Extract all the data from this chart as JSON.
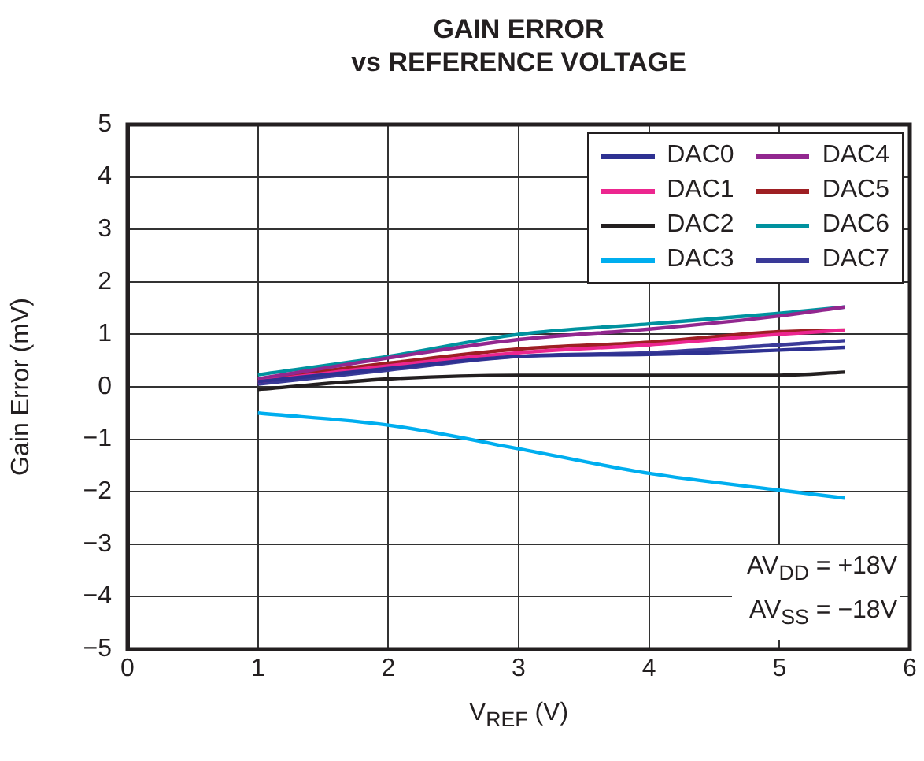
{
  "chart_data": {
    "type": "line",
    "title": "GAIN ERROR\nvs REFERENCE VOLTAGE",
    "xlabel": "V$_{REF}$ (V)",
    "ylabel": "Gain Error (mV)",
    "x": [
      1,
      2,
      3,
      4,
      5,
      5.5
    ],
    "series": [
      {
        "name": "DAC0",
        "color": "#2e3192",
        "values": [
          0.1,
          0.35,
          0.58,
          0.62,
          0.7,
          0.75
        ]
      },
      {
        "name": "DAC1",
        "color": "#ec268f",
        "values": [
          0.1,
          0.4,
          0.65,
          0.8,
          1.0,
          1.08
        ]
      },
      {
        "name": "DAC2",
        "color": "#231f20",
        "values": [
          -0.05,
          0.15,
          0.22,
          0.22,
          0.22,
          0.28
        ]
      },
      {
        "name": "DAC3",
        "color": "#00aeef",
        "values": [
          -0.5,
          -0.73,
          -1.18,
          -1.65,
          -1.97,
          -2.12
        ]
      },
      {
        "name": "DAC4",
        "color": "#92278f",
        "values": [
          0.15,
          0.55,
          0.9,
          1.1,
          1.35,
          1.52
        ]
      },
      {
        "name": "DAC5",
        "color": "#9e1f23",
        "values": [
          0.15,
          0.45,
          0.72,
          0.85,
          1.05,
          1.08
        ]
      },
      {
        "name": "DAC6",
        "color": "#00929f",
        "values": [
          0.23,
          0.58,
          1.0,
          1.2,
          1.4,
          1.52
        ]
      },
      {
        "name": "DAC7",
        "color": "#3a3a98",
        "values": [
          0.05,
          0.32,
          0.58,
          0.65,
          0.8,
          0.88
        ]
      }
    ],
    "xlim": [
      0,
      6
    ],
    "xticks": [
      0,
      1,
      2,
      3,
      4,
      5,
      6
    ],
    "ylim": [
      -5,
      5
    ],
    "yticks": [
      -5,
      -4,
      -3,
      -2,
      -1,
      0,
      1,
      2,
      3,
      4,
      5
    ],
    "grid": true,
    "legend": "top right",
    "marker": "none",
    "line_style": "solid",
    "annotations": [
      "AV$_{DD}$ = +18V",
      "AV$_{SS}$ = −18V"
    ]
  }
}
